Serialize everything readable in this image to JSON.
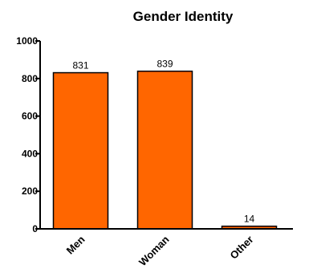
{
  "chart_data": {
    "type": "bar",
    "title": "Gender Identity",
    "xlabel": "",
    "ylabel": "",
    "categories": [
      "Men",
      "Woman",
      "Other"
    ],
    "values": [
      831,
      839,
      14
    ],
    "data_labels": [
      "831",
      "839",
      "14"
    ],
    "ylim": [
      0,
      1000
    ],
    "yticks": [
      0,
      200,
      400,
      600,
      800,
      1000
    ],
    "grid": false,
    "legend": "none",
    "bar_color": "#ff6600",
    "bar_edge_color": "#000000"
  }
}
